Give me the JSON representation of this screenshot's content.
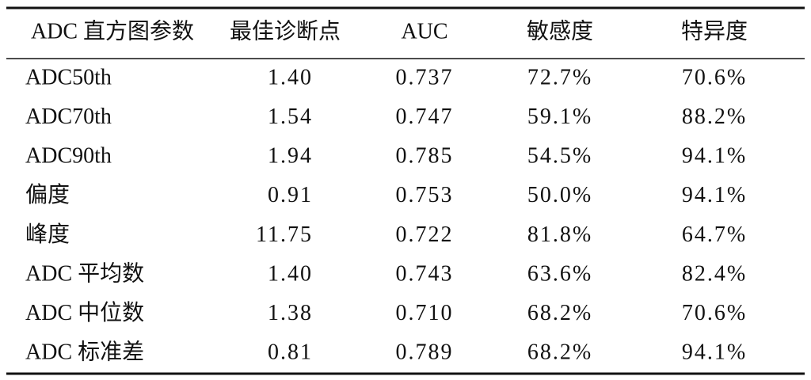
{
  "table": {
    "header": [
      "ADC 直方图参数",
      "最佳诊断点",
      "AUC",
      "敏感度",
      "特异度"
    ],
    "rows": [
      [
        "ADC50th",
        "1.40",
        "0.737",
        "72.7%",
        "70.6%"
      ],
      [
        "ADC70th",
        "1.54",
        "0.747",
        "59.1%",
        "88.2%"
      ],
      [
        "ADC90th",
        "1.94",
        "0.785",
        "54.5%",
        "94.1%"
      ],
      [
        "偏度",
        "0.91",
        "0.753",
        "50.0%",
        "94.1%"
      ],
      [
        "峰度",
        "11.75",
        "0.722",
        "81.8%",
        "64.7%"
      ],
      [
        "ADC 平均数",
        "1.40",
        "0.743",
        "63.6%",
        "82.4%"
      ],
      [
        "ADC 中位数",
        "1.38",
        "0.710",
        "68.2%",
        "70.6%"
      ],
      [
        "ADC 标准差",
        "0.81",
        "0.789",
        "68.2%",
        "94.1%"
      ]
    ]
  }
}
